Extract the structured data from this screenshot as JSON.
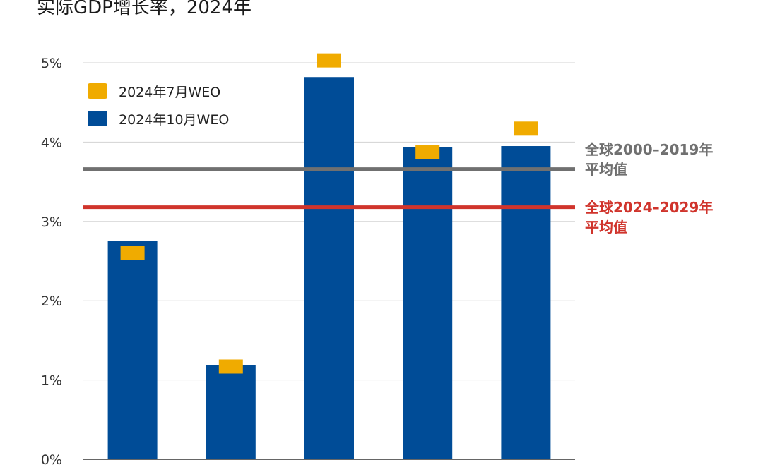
{
  "chart_data": {
    "type": "bar",
    "title": "实际GDP增长率，2024年",
    "categories": [
      "",
      "",
      "",
      "",
      ""
    ],
    "series": [
      {
        "name": "2024年7月WEO",
        "marker": "dash",
        "color": "#F0AB00",
        "values": [
          2.6,
          1.17,
          5.03,
          3.87,
          4.17
        ]
      },
      {
        "name": "2024年10月WEO",
        "marker": "bar",
        "color": "#004C97",
        "values": [
          2.75,
          1.19,
          4.82,
          3.94,
          3.95
        ]
      }
    ],
    "reference_lines": [
      {
        "label_line1": "全球2000–2019年",
        "label_line2": "平均值",
        "value": 3.66,
        "color": "#707070"
      },
      {
        "label_line1": "全球2024–2029年",
        "label_line2": "平均值",
        "value": 3.18,
        "color": "#D0342C"
      }
    ],
    "y_ticks": [
      "0%",
      "1%",
      "2%",
      "3%",
      "4%",
      "5%"
    ],
    "ylim": [
      0,
      5
    ],
    "grid": true,
    "legend_position": "top-left"
  }
}
